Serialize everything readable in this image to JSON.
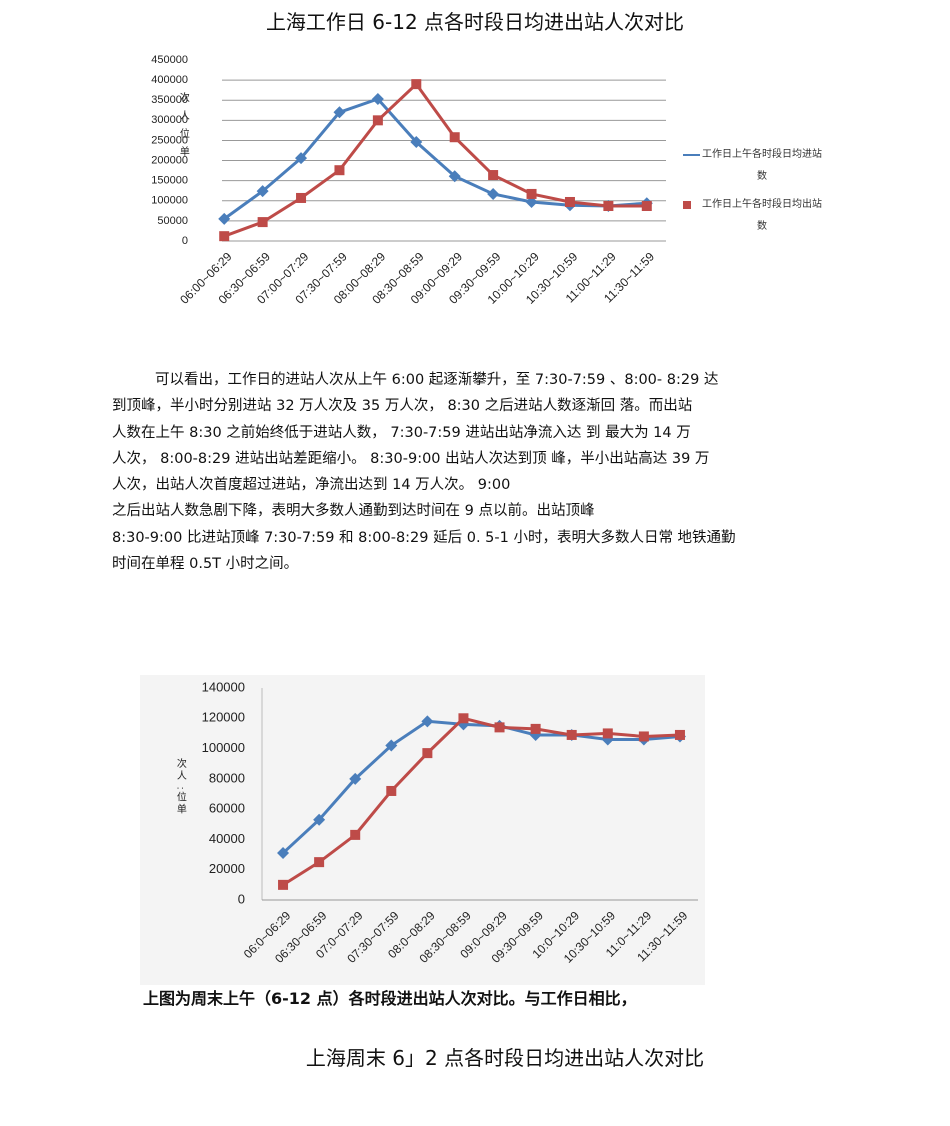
{
  "chart_data": [
    {
      "type": "line",
      "title": "上海工作日 6-12 点各时段日均进出站人次对比",
      "y_label": "次人位单",
      "categories": [
        "06:00~06:29",
        "06:30~06:59",
        "07:00~07:29",
        "07:30~07:59",
        "08:00~08:29",
        "08:30~08:59",
        "09:00~09:29",
        "09:30~09:59",
        "10:00~10:29",
        "10:30~10:59",
        "11:00~11:29",
        "11:30~11:59"
      ],
      "series": [
        {
          "name": "工作日上午各时段日均进站数",
          "color": "#4a7ebb",
          "marker": "diamond",
          "values": [
            55000,
            124000,
            206000,
            320000,
            353000,
            246000,
            161000,
            117000,
            97000,
            89000,
            87000,
            94000
          ]
        },
        {
          "name": "工作日上午各时段日均出站数",
          "color": "#be4b48",
          "marker": "square",
          "values": [
            12000,
            47000,
            107000,
            176000,
            300000,
            390000,
            258000,
            164000,
            117000,
            97000,
            87000,
            87000
          ]
        }
      ],
      "ylim": [
        0,
        450000
      ],
      "yticks": [
        0,
        50000,
        100000,
        150000,
        200000,
        250000,
        300000,
        350000,
        400000,
        450000
      ],
      "grid": true,
      "legend": "right"
    },
    {
      "type": "line",
      "y_label": "次人 :位单",
      "categories": [
        "06:0~06:29",
        "06:30~06:59",
        "07:0~07:29",
        "07:30~07:59",
        "08:0~08:29",
        "08:30~08:59",
        "09:0~09:29",
        "09:30~09:59",
        "10:0~10:29",
        "10:30~10:59",
        "11:0~11:29",
        "11:30~11:59"
      ],
      "series": [
        {
          "color": "#4a7ebb",
          "marker": "diamond",
          "values": [
            31000,
            53000,
            80000,
            102000,
            118000,
            116000,
            115000,
            109000,
            109000,
            106000,
            106000,
            108000
          ]
        },
        {
          "color": "#be4b48",
          "marker": "square",
          "values": [
            10000,
            25000,
            43000,
            72000,
            97000,
            120000,
            114000,
            113000,
            109000,
            110000,
            108000,
            109000
          ]
        }
      ],
      "ylim": [
        0,
        140000
      ],
      "yticks": [
        0,
        20000,
        40000,
        60000,
        80000,
        100000,
        120000,
        140000
      ],
      "grid": false
    }
  ],
  "document": {
    "paragraph": [
      "可以看出，工作日的进站人次从上午 6:00 起逐渐攀升，至 7:30-7:59 、8:00- 8:29 达",
      "到顶峰，半小时分别进站 32 万人次及 35 万人次， 8:30 之后进站人数逐渐回 落。而出站",
      "人数在上午 8:30 之前始终低于进站人数， 7:30-7:59 进站出站净流入达 到 最大为 14 万",
      "人次， 8:00-8:29 进站出站差距缩小。 8:30-9:00 出站人次达到顶 峰，半小出站高达 39 万",
      "人次，出站人次首度超过进站，净流出达到 14 万人次。 9:00",
      "之后出站人数急剧下降，表明大多数人通勤到达时间在 9 点以前。出站顶峰",
      "8:30-9:00 比进站顶峰 7:30-7:59 和 8:00-8:29 延后 0. 5-1 小时，表明大多数人日常 地铁通勤",
      "时间在单程 0.5T 小时之间。"
    ],
    "caption": "上图为周末上午（6-12 点）各时段进出站人次对比。与工作日相比，",
    "title2": "上海周末 6」2 点各时段日均进出站人次对比"
  }
}
